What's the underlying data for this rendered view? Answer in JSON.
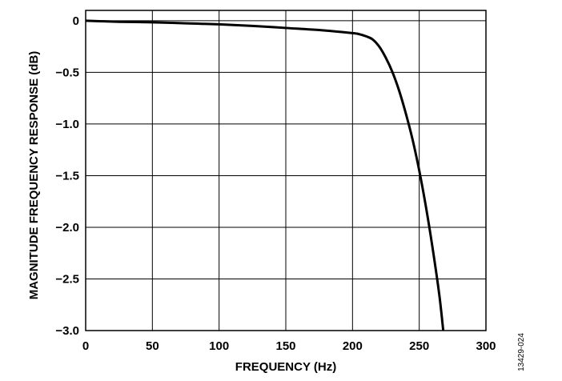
{
  "chart_data": {
    "type": "line",
    "xlabel": "FREQUENCY (Hz)",
    "ylabel": "MAGNITUDE FREQUENCY RESPONSE (dB)",
    "xlim": [
      0,
      300
    ],
    "ylim": [
      -3.0,
      0.1
    ],
    "x_ticks": [
      0,
      50,
      100,
      150,
      200,
      250,
      300
    ],
    "x_tick_labels": [
      "0",
      "50",
      "100",
      "150",
      "200",
      "250",
      "300"
    ],
    "y_ticks": [
      0,
      -0.5,
      -1.0,
      -1.5,
      -2.0,
      -2.5,
      -3.0
    ],
    "y_tick_labels": [
      "0",
      "−0.5",
      "−1.0",
      "−1.5",
      "−2.0",
      "−2.5",
      "−3.0"
    ],
    "grid": true,
    "figure_id": "13429-024",
    "series": [
      {
        "color": "#000000",
        "x": [
          0,
          25,
          50,
          75,
          100,
          125,
          150,
          175,
          200,
          205,
          210,
          215,
          220,
          225,
          230,
          235,
          240,
          245,
          250,
          255,
          260,
          265,
          268
        ],
        "y": [
          0.0,
          -0.01,
          -0.015,
          -0.025,
          -0.035,
          -0.05,
          -0.07,
          -0.09,
          -0.12,
          -0.13,
          -0.15,
          -0.18,
          -0.25,
          -0.36,
          -0.5,
          -0.68,
          -0.9,
          -1.15,
          -1.45,
          -1.8,
          -2.2,
          -2.65,
          -3.0
        ]
      }
    ]
  }
}
